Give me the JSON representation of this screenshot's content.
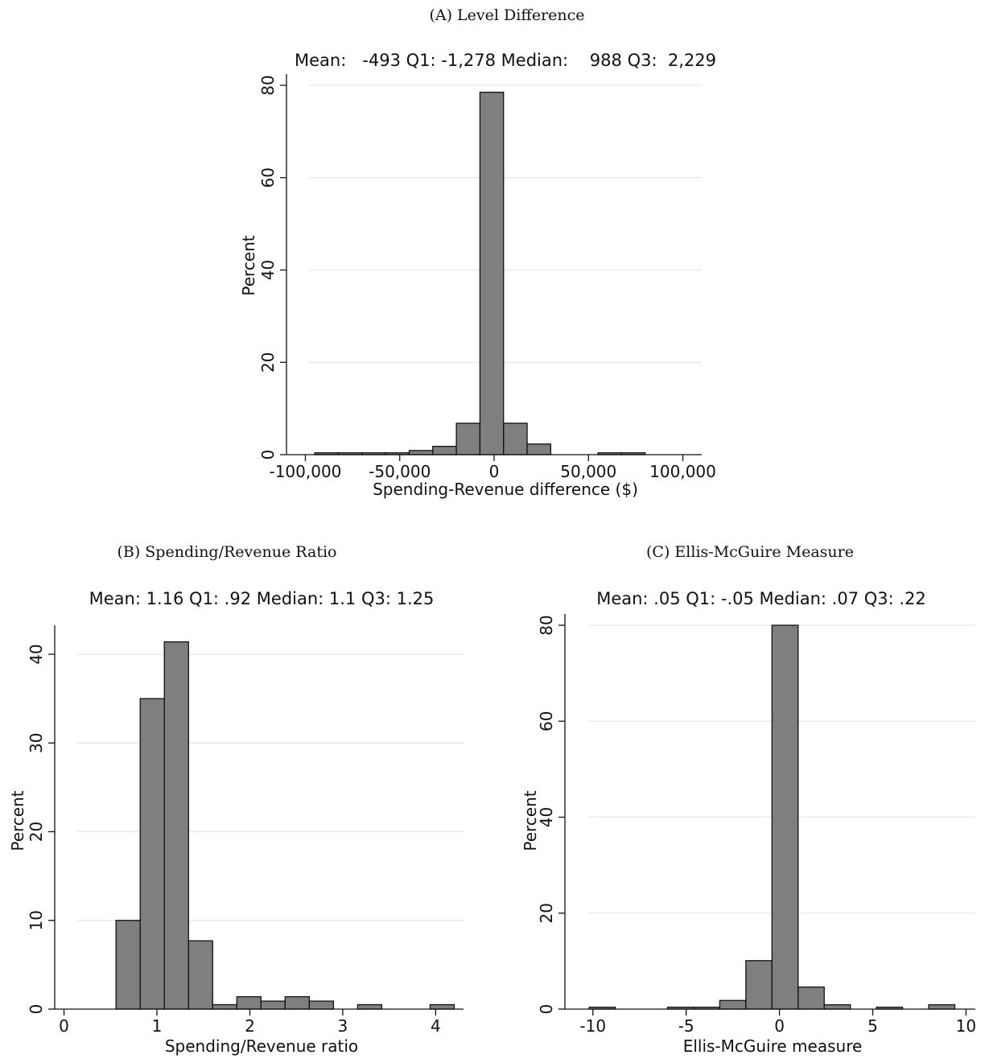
{
  "chart_data": [
    {
      "type": "histogram",
      "panel_caption": "(A) Level Difference",
      "stats_line": "Mean:   -493 Q1: -1,278 Median:    988 Q3:  2,229",
      "xlabel": "Spending-Revenue difference ($)",
      "ylabel": "Percent",
      "xlim": [
        -110000,
        110000
      ],
      "ylim": [
        0,
        80
      ],
      "xticks": [
        -100000,
        -50000,
        0,
        50000,
        100000
      ],
      "xtick_labels": [
        "-100,000",
        "-50,000",
        "0",
        "50,000",
        "100,000"
      ],
      "yticks": [
        0,
        20,
        40,
        60,
        80
      ],
      "ytick_labels": [
        "0",
        "20",
        "40",
        "60",
        "80"
      ],
      "grid": "horizontal",
      "bar_color": "#7f7f7f",
      "bin_width": 12500,
      "bins": [
        {
          "x0": -95000,
          "x1": -82500,
          "value": 0.4
        },
        {
          "x0": -82500,
          "x1": -70000,
          "value": 0.4
        },
        {
          "x0": -70000,
          "x1": -57500,
          "value": 0.4
        },
        {
          "x0": -57500,
          "x1": -45000,
          "value": 0.4
        },
        {
          "x0": -45000,
          "x1": -32500,
          "value": 0.9
        },
        {
          "x0": -32500,
          "x1": -20000,
          "value": 1.8
        },
        {
          "x0": -20000,
          "x1": -7500,
          "value": 6.8
        },
        {
          "x0": -7500,
          "x1": 5000,
          "value": 78.5
        },
        {
          "x0": 5000,
          "x1": 17500,
          "value": 6.8
        },
        {
          "x0": 17500,
          "x1": 30000,
          "value": 2.3
        },
        {
          "x0": 55000,
          "x1": 67500,
          "value": 0.4
        },
        {
          "x0": 67500,
          "x1": 80000,
          "value": 0.4
        }
      ]
    },
    {
      "type": "histogram",
      "panel_caption": "(B) Spending/Revenue Ratio",
      "stats_line": "Mean: 1.16 Q1: .92 Median: 1.1 Q3: 1.25",
      "xlabel": "Spending/Revenue ratio",
      "ylabel": "Percent",
      "xlim": [
        -0.1,
        4.3
      ],
      "ylim": [
        0,
        42
      ],
      "xticks": [
        0,
        1,
        2,
        3,
        4
      ],
      "xtick_labels": [
        "0",
        "1",
        "2",
        "3",
        "4"
      ],
      "yticks": [
        0,
        10,
        20,
        30,
        40
      ],
      "ytick_labels": [
        "0",
        "10",
        "20",
        "30",
        "40"
      ],
      "grid": "horizontal",
      "bar_color": "#7f7f7f",
      "bin_width": 0.26,
      "bins": [
        {
          "x0": 0.56,
          "x1": 0.82,
          "value": 10.0
        },
        {
          "x0": 0.82,
          "x1": 1.08,
          "value": 35.0
        },
        {
          "x0": 1.08,
          "x1": 1.34,
          "value": 41.4
        },
        {
          "x0": 1.34,
          "x1": 1.6,
          "value": 7.7
        },
        {
          "x0": 1.6,
          "x1": 1.86,
          "value": 0.5
        },
        {
          "x0": 1.86,
          "x1": 2.12,
          "value": 1.4
        },
        {
          "x0": 2.12,
          "x1": 2.38,
          "value": 0.9
        },
        {
          "x0": 2.38,
          "x1": 2.64,
          "value": 1.4
        },
        {
          "x0": 2.64,
          "x1": 2.9,
          "value": 0.9
        },
        {
          "x0": 3.16,
          "x1": 3.42,
          "value": 0.5
        },
        {
          "x0": 3.94,
          "x1": 4.2,
          "value": 0.5
        }
      ]
    },
    {
      "type": "histogram",
      "panel_caption": "(C) Ellis-McGuire Measure",
      "stats_line": "Mean: .05 Q1: -.05 Median: .07 Q3: .22",
      "xlabel": "Ellis-McGuire measure",
      "ylabel": "Percent",
      "xlim": [
        -11.5,
        10.5
      ],
      "ylim": [
        0,
        80
      ],
      "xticks": [
        -10,
        -5,
        0,
        5,
        10
      ],
      "xtick_labels": [
        "-10",
        "-5",
        "0",
        "5",
        "10"
      ],
      "yticks": [
        0,
        20,
        40,
        60,
        80
      ],
      "ytick_labels": [
        "0",
        "20",
        "40",
        "60",
        "80"
      ],
      "grid": "horizontal",
      "bar_color": "#7f7f7f",
      "bin_width": 1.4,
      "bins": [
        {
          "x0": -10.2,
          "x1": -8.8,
          "value": 0.4
        },
        {
          "x0": -6.0,
          "x1": -4.6,
          "value": 0.4
        },
        {
          "x0": -4.6,
          "x1": -3.2,
          "value": 0.4
        },
        {
          "x0": -3.2,
          "x1": -1.8,
          "value": 1.8
        },
        {
          "x0": -1.8,
          "x1": -0.4,
          "value": 10.1
        },
        {
          "x0": -0.4,
          "x1": 1.0,
          "value": 80.0
        },
        {
          "x0": 1.0,
          "x1": 2.4,
          "value": 4.6
        },
        {
          "x0": 2.4,
          "x1": 3.8,
          "value": 0.9
        },
        {
          "x0": 5.2,
          "x1": 6.6,
          "value": 0.4
        },
        {
          "x0": 8.0,
          "x1": 9.4,
          "value": 0.9
        }
      ]
    }
  ]
}
